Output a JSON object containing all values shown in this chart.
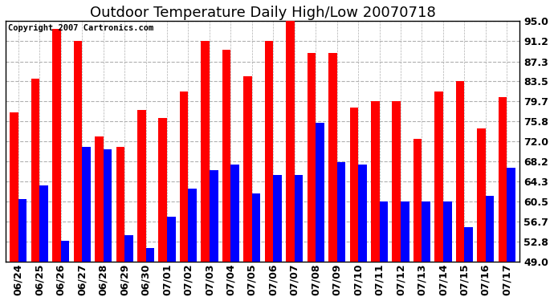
{
  "title": "Outdoor Temperature Daily High/Low 20070718",
  "copyright": "Copyright 2007 Cartronics.com",
  "dates": [
    "06/24",
    "06/25",
    "06/26",
    "06/27",
    "06/28",
    "06/29",
    "06/30",
    "07/01",
    "07/02",
    "07/03",
    "07/04",
    "07/05",
    "07/06",
    "07/07",
    "07/08",
    "07/09",
    "07/10",
    "07/11",
    "07/12",
    "07/13",
    "07/14",
    "07/15",
    "07/16",
    "07/17"
  ],
  "highs": [
    77.5,
    84.0,
    93.5,
    91.2,
    73.0,
    71.0,
    78.0,
    76.5,
    81.5,
    91.2,
    89.5,
    84.5,
    91.2,
    95.0,
    89.0,
    89.0,
    78.5,
    79.7,
    79.7,
    72.5,
    81.5,
    83.5,
    74.5,
    80.5
  ],
  "lows": [
    61.0,
    63.5,
    53.0,
    71.0,
    70.5,
    54.0,
    51.5,
    57.5,
    63.0,
    66.5,
    67.5,
    62.0,
    65.5,
    65.5,
    75.5,
    68.0,
    67.5,
    60.5,
    60.5,
    60.5,
    60.5,
    55.5,
    61.5,
    67.0
  ],
  "high_color": "#ff0000",
  "low_color": "#0000ff",
  "bg_color": "#ffffff",
  "plot_bg_color": "#ffffff",
  "grid_color": "#b0b0b0",
  "ymin": 49.0,
  "ymax": 95.0,
  "yticks": [
    49.0,
    52.8,
    56.7,
    60.5,
    64.3,
    68.2,
    72.0,
    75.8,
    79.7,
    83.5,
    87.3,
    91.2,
    95.0
  ],
  "bar_width": 0.4,
  "title_fontsize": 13,
  "tick_fontsize": 9,
  "copyright_fontsize": 7.5
}
